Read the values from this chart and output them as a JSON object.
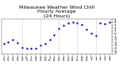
{
  "title": "Milwaukee Weather Wind Chill\nHourly Average\n(24 Hours)",
  "x": [
    0,
    1,
    2,
    3,
    4,
    5,
    6,
    7,
    8,
    9,
    10,
    11,
    12,
    13,
    14,
    15,
    16,
    17,
    18,
    19,
    20,
    21,
    22,
    23
  ],
  "y": [
    -3.5,
    -2.8,
    -2.0,
    -3.2,
    -4.8,
    -5.2,
    -5.1,
    -5.0,
    -4.0,
    -3.5,
    -2.0,
    -0.3,
    1.8,
    3.0,
    3.6,
    3.9,
    3.7,
    3.3,
    1.5,
    0.2,
    -0.8,
    3.6,
    3.4,
    4.1
  ],
  "ylim": [
    -7,
    5
  ],
  "xlim": [
    -0.5,
    23.5
  ],
  "yticks": [
    -7,
    -6,
    -5,
    -4,
    -3,
    -2,
    -1,
    0,
    1,
    2,
    3,
    4,
    5
  ],
  "ytick_labels": [
    "-7",
    "-6",
    "-5",
    "-4",
    "-3",
    "-2",
    "-1",
    "0",
    "1",
    "2",
    "3",
    "4",
    "5"
  ],
  "xticks": [
    0,
    1,
    2,
    3,
    4,
    5,
    6,
    7,
    8,
    9,
    10,
    11,
    12,
    13,
    14,
    15,
    16,
    17,
    18,
    19,
    20,
    21,
    22,
    23
  ],
  "xtick_labels": [
    "1\n5",
    "2\n5",
    "3\n5",
    "4\n5",
    "5\n5",
    "6\n5",
    "7\n5",
    "8\n5",
    "9\n5",
    "0\n6",
    "1\n6",
    "2\n6",
    "3\n6",
    "4\n6",
    "5\n6",
    "6\n6",
    "7\n6",
    "8\n6",
    "9\n6",
    "0\n7",
    "1\n7",
    "2\n7",
    "3\n7",
    "4\n7"
  ],
  "grid_color": "#999999",
  "line_color": "#0000cc",
  "bg_color": "#ffffff",
  "title_fontsize": 4.5,
  "tick_fontsize": 3.0,
  "marker_size": 1.5,
  "vgrid_positions": [
    4,
    8,
    12,
    16,
    20
  ]
}
